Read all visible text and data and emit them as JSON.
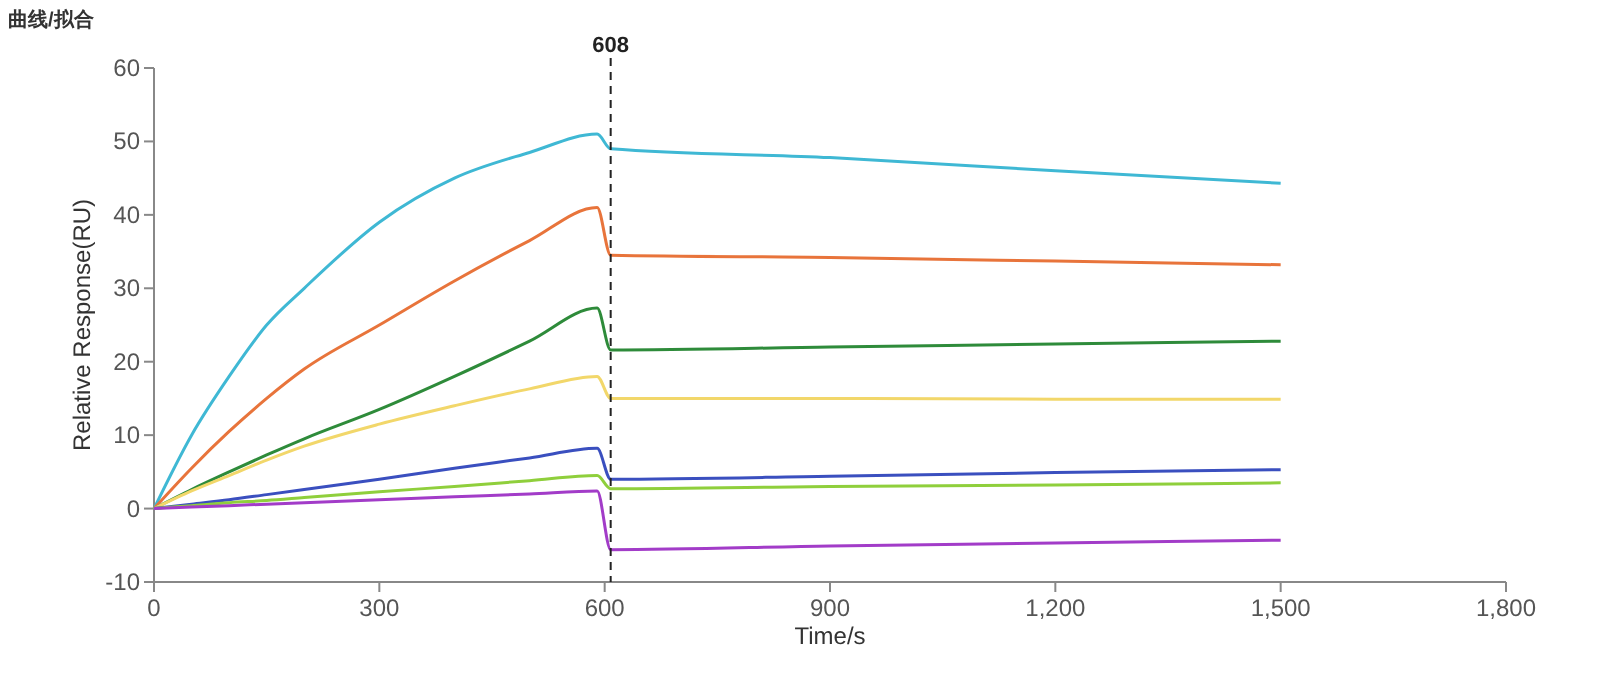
{
  "chart_data": {
    "type": "line",
    "title": "曲线/拟合",
    "xlabel": "Time/s",
    "ylabel": "Relative Response(RU)",
    "xlim": [
      0,
      1800
    ],
    "xticks": [
      0,
      300,
      600,
      900,
      {
        "value": 1200,
        "label": "1,200"
      },
      {
        "value": 1500,
        "label": "1,500"
      },
      {
        "value": 1800,
        "label": "1,800"
      }
    ],
    "ylim": [
      -10,
      60
    ],
    "yticks": [
      -10,
      0,
      10,
      20,
      30,
      40,
      50,
      60
    ],
    "grid": false,
    "line_style": "solid",
    "x": [
      0,
      50,
      100,
      150,
      200,
      300,
      400,
      500,
      590,
      608,
      900,
      1200,
      1500
    ],
    "series": [
      {
        "color": "#3fb8d4",
        "values": [
          0,
          10,
          18,
          25,
          30,
          39,
          45,
          48.5,
          51,
          49,
          47.8,
          46,
          44.3
        ]
      },
      {
        "color": "#e8743b",
        "values": [
          0,
          5.5,
          10.5,
          15,
          19,
          25,
          31,
          36.5,
          41,
          34.5,
          34.2,
          33.7,
          33.2
        ]
      },
      {
        "color": "#2e8b3a",
        "values": [
          0,
          2.6,
          5,
          7.3,
          9.5,
          13.5,
          18,
          22.8,
          27.3,
          21.6,
          22,
          22.4,
          22.8
        ]
      },
      {
        "color": "#f2d76a",
        "values": [
          0,
          2.4,
          4.5,
          6.6,
          8.5,
          11.5,
          14,
          16.3,
          18,
          15,
          15,
          14.9,
          14.9
        ]
      },
      {
        "color": "#3a4fbf",
        "values": [
          0,
          0.6,
          1.2,
          1.9,
          2.6,
          4,
          5.5,
          6.9,
          8.2,
          4,
          4.4,
          4.9,
          5.3
        ]
      },
      {
        "color": "#8fcf3c",
        "values": [
          0,
          0.4,
          0.8,
          1.1,
          1.5,
          2.3,
          3,
          3.8,
          4.5,
          2.7,
          3,
          3.2,
          3.5
        ]
      },
      {
        "color": "#a23cc8",
        "values": [
          0,
          0.2,
          0.4,
          0.6,
          0.8,
          1.2,
          1.6,
          2,
          2.4,
          -5.6,
          -5.1,
          -4.7,
          -4.3
        ]
      }
    ],
    "ref_lines": [
      {
        "axis": "x",
        "value": 608,
        "label": "608",
        "color": "#222222",
        "line_style": "dashed"
      }
    ]
  }
}
